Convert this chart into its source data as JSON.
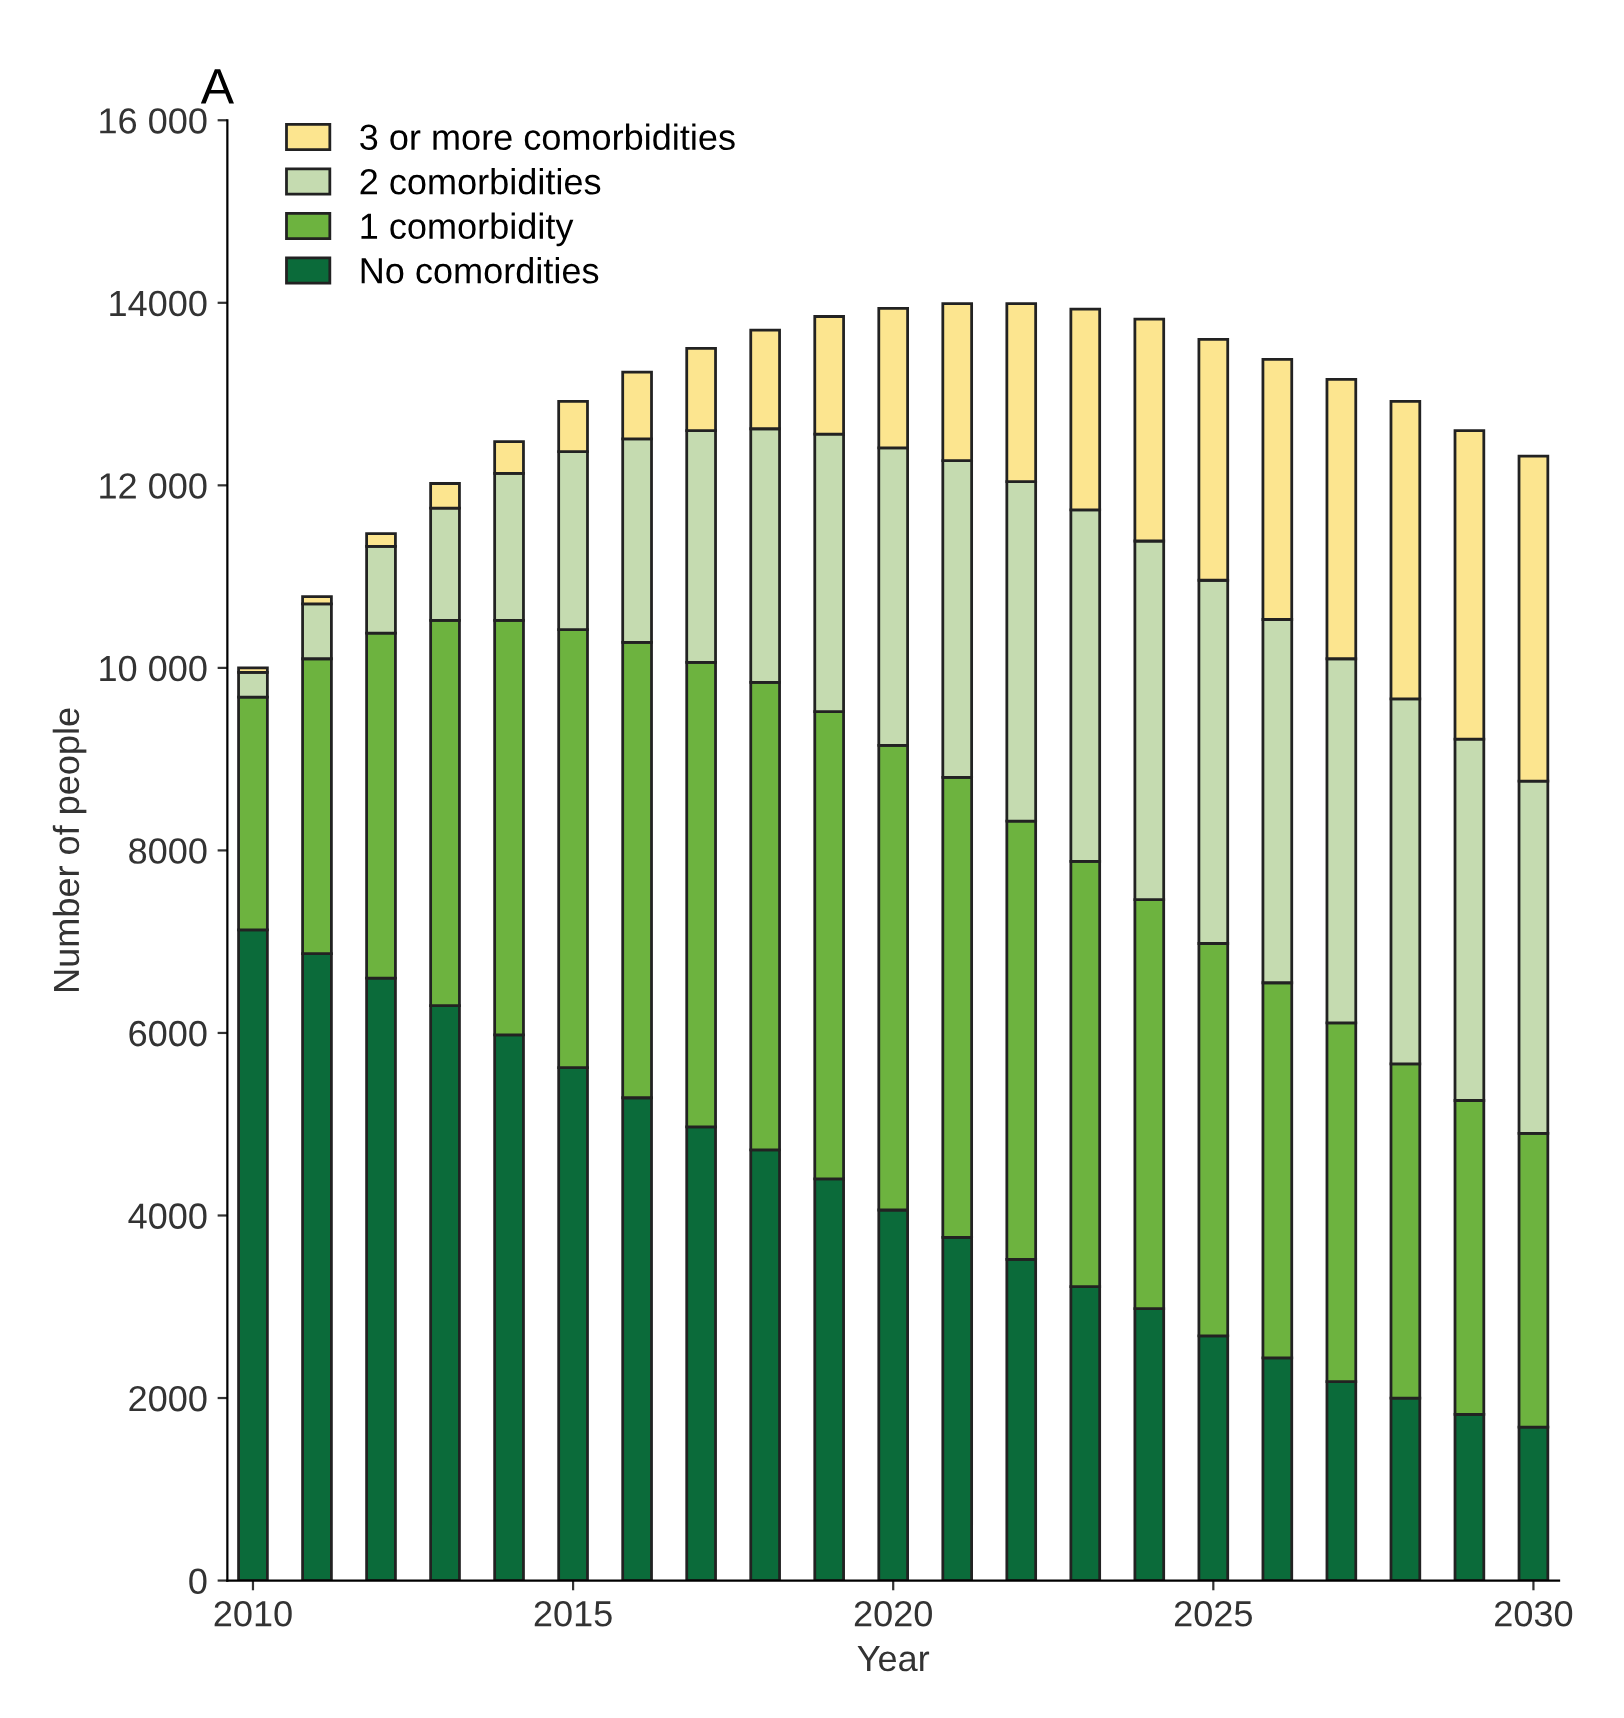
{
  "chart_data": {
    "type": "bar",
    "title": "A",
    "xlabel": "Year",
    "ylabel": "Number of people",
    "stacked": true,
    "legend": "top left",
    "grid": false,
    "x": [
      2010,
      2011,
      2012,
      2013,
      2014,
      2015,
      2016,
      2017,
      2018,
      2019,
      2020,
      2021,
      2022,
      2023,
      2024,
      2025,
      2026,
      2027,
      2028,
      2029,
      2030
    ],
    "xlim": [
      2009.6,
      2030.4
    ],
    "xticks": [
      2010,
      2015,
      2020,
      2025,
      2030
    ],
    "ylim": [
      0,
      16000
    ],
    "yticks": [
      0,
      2000,
      4000,
      6000,
      8000,
      {
        "value": 10000,
        "label": "10 000"
      },
      {
        "value": 12000,
        "label": "12 000"
      },
      14000,
      {
        "value": 16000,
        "label": "16 000"
      }
    ],
    "series": [
      {
        "name": "No comordities",
        "color": "#0b6b3a",
        "values": [
          7130,
          6870,
          6600,
          6300,
          5980,
          5620,
          5290,
          4970,
          4720,
          4400,
          4060,
          3760,
          3520,
          3220,
          2980,
          2680,
          2440,
          2180,
          2000,
          1820,
          1680
        ]
      },
      {
        "name": "1 comorbidity",
        "color": "#6db33f",
        "values": [
          2550,
          3230,
          3780,
          4220,
          4540,
          4800,
          4990,
          5090,
          5120,
          5120,
          5090,
          5040,
          4800,
          4660,
          4480,
          4300,
          4110,
          3930,
          3660,
          3440,
          3220
        ]
      },
      {
        "name": "2 comorbidities",
        "color": "#c5dbb0",
        "values": [
          270,
          600,
          950,
          1230,
          1610,
          1950,
          2230,
          2540,
          2780,
          3040,
          3260,
          3470,
          3720,
          3850,
          3930,
          3980,
          3980,
          3990,
          4000,
          3960,
          3860
        ]
      },
      {
        "name": "3 or more comorbidities",
        "color": "#fce58f",
        "values": [
          50,
          80,
          140,
          270,
          350,
          550,
          730,
          900,
          1080,
          1290,
          1530,
          1720,
          1950,
          2200,
          2430,
          2640,
          2850,
          3060,
          3260,
          3380,
          3560
        ]
      }
    ]
  }
}
